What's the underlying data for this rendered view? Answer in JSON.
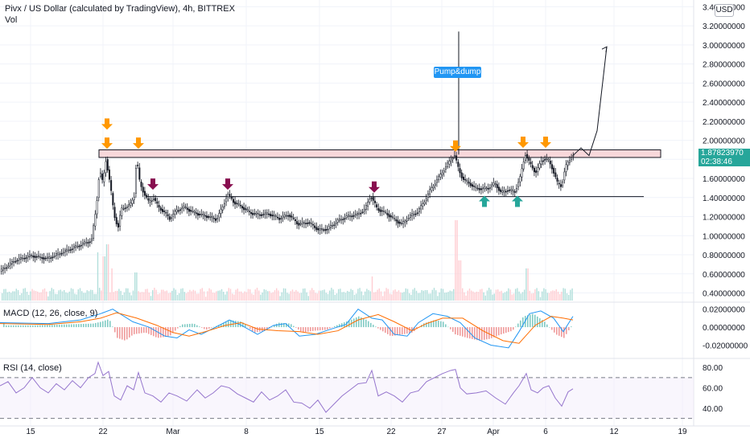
{
  "header": {
    "title": "Pivx / US Dollar (calculated by TradingView), 4h, BITTREX",
    "volume_label": "Vol",
    "currency_badge": "USD"
  },
  "price_tag": {
    "value": "1.87823970",
    "countdown": "02:38:46",
    "color": "#26a69a"
  },
  "annotation": {
    "pump_label": "Pump&dump"
  },
  "indicators": {
    "macd_label": "MACD (12, 26, close, 9)",
    "rsi_label": "RSI (14, close)"
  },
  "colors": {
    "up": "#26a69a",
    "down": "#ef5350",
    "candle": "#131722",
    "resistance_zone": "#f8d7da",
    "arrow_orange": "#ff9800",
    "arrow_maroon": "#880e4f",
    "arrow_teal": "#26a69a",
    "macd_line": "#2196f3",
    "signal_line": "#ff6d00",
    "rsi_line": "#9575cd"
  },
  "chart_data": {
    "type": "candlestick",
    "price_axis": {
      "ticks": [
        "3.40000000",
        "3.20000000",
        "3.00000000",
        "2.80000000",
        "2.60000000",
        "2.40000000",
        "2.20000000",
        "2.00000000",
        "1.80000000",
        "1.60000000",
        "1.40000000",
        "1.20000000",
        "1.00000000",
        "0.80000000",
        "0.60000000",
        "0.40000000"
      ],
      "ylim": [
        0.32,
        3.42
      ]
    },
    "macd_axis": {
      "ticks": [
        "0.02000000",
        "0.00000000",
        "-0.02000000"
      ],
      "ylim": [
        -0.033,
        0.026
      ]
    },
    "rsi_axis": {
      "ticks": [
        "80.00",
        "60.00",
        "40.00"
      ],
      "ylim": [
        25,
        88
      ],
      "bands": [
        70,
        30
      ]
    },
    "x_axis": {
      "ticks": [
        "15",
        "22",
        "Mar",
        "8",
        "15",
        "22",
        "27",
        "Apr",
        "6",
        "12",
        "19"
      ]
    },
    "price_path": [
      [
        0,
        0.62
      ],
      [
        20,
        0.74
      ],
      [
        40,
        0.79
      ],
      [
        60,
        0.76
      ],
      [
        80,
        0.83
      ],
      [
        100,
        0.9
      ],
      [
        115,
        0.95
      ],
      [
        121,
        1.3
      ],
      [
        125,
        1.7
      ],
      [
        129,
        1.55
      ],
      [
        133,
        1.8
      ],
      [
        138,
        1.55
      ],
      [
        143,
        1.22
      ],
      [
        148,
        1.08
      ],
      [
        152,
        1.28
      ],
      [
        157,
        1.3
      ],
      [
        163,
        1.32
      ],
      [
        168,
        1.42
      ],
      [
        171,
        1.82
      ],
      [
        175,
        1.55
      ],
      [
        180,
        1.45
      ],
      [
        186,
        1.35
      ],
      [
        192,
        1.4
      ],
      [
        198,
        1.3
      ],
      [
        205,
        1.25
      ],
      [
        212,
        1.18
      ],
      [
        220,
        1.26
      ],
      [
        230,
        1.3
      ],
      [
        240,
        1.25
      ],
      [
        250,
        1.22
      ],
      [
        260,
        1.2
      ],
      [
        270,
        1.17
      ],
      [
        278,
        1.3
      ],
      [
        284,
        1.44
      ],
      [
        292,
        1.35
      ],
      [
        302,
        1.3
      ],
      [
        312,
        1.24
      ],
      [
        322,
        1.22
      ],
      [
        335,
        1.23
      ],
      [
        348,
        1.18
      ],
      [
        360,
        1.22
      ],
      [
        372,
        1.12
      ],
      [
        385,
        1.14
      ],
      [
        397,
        1.06
      ],
      [
        408,
        1.07
      ],
      [
        420,
        1.15
      ],
      [
        432,
        1.2
      ],
      [
        445,
        1.22
      ],
      [
        455,
        1.28
      ],
      [
        462,
        1.42
      ],
      [
        470,
        1.28
      ],
      [
        480,
        1.24
      ],
      [
        490,
        1.18
      ],
      [
        500,
        1.12
      ],
      [
        510,
        1.2
      ],
      [
        520,
        1.25
      ],
      [
        528,
        1.35
      ],
      [
        536,
        1.48
      ],
      [
        544,
        1.58
      ],
      [
        552,
        1.68
      ],
      [
        560,
        1.78
      ],
      [
        566,
        1.85
      ],
      [
        571,
        1.7
      ],
      [
        576,
        1.6
      ],
      [
        584,
        1.55
      ],
      [
        592,
        1.5
      ],
      [
        600,
        1.49
      ],
      [
        608,
        1.5
      ],
      [
        616,
        1.55
      ],
      [
        624,
        1.45
      ],
      [
        632,
        1.48
      ],
      [
        641,
        1.46
      ],
      [
        648,
        1.62
      ],
      [
        654,
        1.86
      ],
      [
        660,
        1.75
      ],
      [
        667,
        1.66
      ],
      [
        675,
        1.8
      ],
      [
        682,
        1.8
      ],
      [
        688,
        1.7
      ],
      [
        694,
        1.55
      ],
      [
        699,
        1.52
      ],
      [
        704,
        1.72
      ],
      [
        712,
        1.84
      ]
    ],
    "projection_path": [
      [
        712,
        1.84
      ],
      [
        722,
        1.92
      ],
      [
        732,
        1.84
      ],
      [
        742,
        2.1
      ],
      [
        754,
        2.98
      ]
    ],
    "resistance_zone": [
      1.82,
      1.9
    ],
    "support_line": 1.41,
    "pump_wick_high": 3.14,
    "volume_spikes": [
      [
        121,
        60
      ],
      [
        129,
        55
      ],
      [
        133,
        70
      ],
      [
        138,
        40
      ],
      [
        168,
        35
      ],
      [
        462,
        30
      ],
      [
        566,
        100
      ],
      [
        571,
        50
      ],
      [
        654,
        40
      ]
    ],
    "arrows": {
      "orange_down": [
        [
          133,
          2.17
        ],
        [
          133,
          1.97
        ],
        [
          172,
          1.97
        ],
        [
          566,
          1.94
        ],
        [
          650,
          1.98
        ],
        [
          678,
          1.98
        ]
      ],
      "maroon_down": [
        [
          190,
          1.54
        ],
        [
          283,
          1.54
        ],
        [
          465,
          1.51
        ]
      ],
      "teal_up": [
        [
          602,
          1.36
        ],
        [
          643,
          1.36
        ]
      ]
    },
    "macd": {
      "line": [
        [
          0,
          0.005
        ],
        [
          60,
          0.004
        ],
        [
          100,
          0.008
        ],
        [
          125,
          0.015
        ],
        [
          140,
          0.02
        ],
        [
          165,
          0.006
        ],
        [
          185,
          0.0
        ],
        [
          205,
          -0.01
        ],
        [
          220,
          -0.012
        ],
        [
          235,
          -0.003
        ],
        [
          250,
          -0.008
        ],
        [
          268,
          0.0
        ],
        [
          285,
          0.008
        ],
        [
          300,
          0.002
        ],
        [
          320,
          -0.008
        ],
        [
          340,
          0.002
        ],
        [
          355,
          0.004
        ],
        [
          372,
          -0.01
        ],
        [
          392,
          -0.008
        ],
        [
          412,
          -0.002
        ],
        [
          430,
          0.003
        ],
        [
          445,
          0.02
        ],
        [
          462,
          0.01
        ],
        [
          475,
          0.008
        ],
        [
          490,
          -0.008
        ],
        [
          506,
          -0.01
        ],
        [
          520,
          0.005
        ],
        [
          538,
          0.015
        ],
        [
          556,
          0.012
        ],
        [
          572,
          0.005
        ],
        [
          590,
          -0.012
        ],
        [
          610,
          -0.02
        ],
        [
          632,
          -0.023
        ],
        [
          645,
          -0.005
        ],
        [
          658,
          0.015
        ],
        [
          672,
          0.018
        ],
        [
          688,
          0.01
        ],
        [
          700,
          -0.005
        ],
        [
          712,
          0.012
        ]
      ],
      "signal": [
        [
          0,
          0.004
        ],
        [
          60,
          0.003
        ],
        [
          100,
          0.006
        ],
        [
          125,
          0.01
        ],
        [
          145,
          0.016
        ],
        [
          170,
          0.01
        ],
        [
          195,
          0.002
        ],
        [
          215,
          -0.006
        ],
        [
          235,
          -0.01
        ],
        [
          255,
          -0.005
        ],
        [
          280,
          0.002
        ],
        [
          300,
          0.005
        ],
        [
          320,
          -0.002
        ],
        [
          345,
          -0.004
        ],
        [
          372,
          -0.005
        ],
        [
          395,
          -0.008
        ],
        [
          420,
          -0.004
        ],
        [
          445,
          0.008
        ],
        [
          470,
          0.014
        ],
        [
          490,
          0.006
        ],
        [
          512,
          -0.004
        ],
        [
          530,
          0.004
        ],
        [
          550,
          0.01
        ],
        [
          575,
          0.01
        ],
        [
          600,
          -0.004
        ],
        [
          625,
          -0.015
        ],
        [
          645,
          -0.018
        ],
        [
          665,
          0.002
        ],
        [
          685,
          0.012
        ],
        [
          700,
          0.01
        ],
        [
          712,
          0.008
        ]
      ],
      "hist": [
        [
          5,
          0.002
        ],
        [
          40,
          0.002
        ],
        [
          80,
          0.003
        ],
        [
          115,
          0.004
        ],
        [
          125,
          0.006
        ],
        [
          135,
          0.009
        ],
        [
          145,
          -0.012
        ],
        [
          155,
          -0.015
        ],
        [
          165,
          -0.008
        ],
        [
          180,
          -0.006
        ],
        [
          195,
          -0.012
        ],
        [
          210,
          -0.01
        ],
        [
          225,
          0.003
        ],
        [
          240,
          0.004
        ],
        [
          255,
          -0.003
        ],
        [
          270,
          0.002
        ],
        [
          285,
          0.008
        ],
        [
          300,
          0.006
        ],
        [
          315,
          -0.006
        ],
        [
          330,
          -0.004
        ],
        [
          345,
          0.005
        ],
        [
          360,
          0.004
        ],
        [
          375,
          -0.006
        ],
        [
          390,
          -0.004
        ],
        [
          405,
          -0.003
        ],
        [
          420,
          0.003
        ],
        [
          435,
          0.008
        ],
        [
          445,
          0.012
        ],
        [
          455,
          0.008
        ],
        [
          470,
          -0.002
        ],
        [
          485,
          -0.01
        ],
        [
          500,
          -0.008
        ],
        [
          512,
          -0.006
        ],
        [
          525,
          0.004
        ],
        [
          540,
          0.008
        ],
        [
          550,
          0.006
        ],
        [
          565,
          -0.008
        ],
        [
          580,
          -0.012
        ],
        [
          595,
          -0.015
        ],
        [
          608,
          -0.013
        ],
        [
          622,
          -0.008
        ],
        [
          636,
          -0.004
        ],
        [
          650,
          0.012
        ],
        [
          662,
          0.015
        ],
        [
          676,
          0.006
        ],
        [
          690,
          -0.008
        ],
        [
          700,
          -0.012
        ],
        [
          712,
          0.005
        ]
      ]
    },
    "rsi": [
      [
        0,
        62
      ],
      [
        10,
        66
      ],
      [
        20,
        55
      ],
      [
        30,
        60
      ],
      [
        40,
        70
      ],
      [
        50,
        60
      ],
      [
        60,
        55
      ],
      [
        70,
        64
      ],
      [
        80,
        58
      ],
      [
        90,
        67
      ],
      [
        100,
        60
      ],
      [
        110,
        70
      ],
      [
        118,
        74
      ],
      [
        122,
        85
      ],
      [
        128,
        72
      ],
      [
        135,
        76
      ],
      [
        142,
        52
      ],
      [
        150,
        48
      ],
      [
        158,
        62
      ],
      [
        166,
        58
      ],
      [
        172,
        75
      ],
      [
        180,
        55
      ],
      [
        190,
        52
      ],
      [
        200,
        46
      ],
      [
        210,
        55
      ],
      [
        220,
        52
      ],
      [
        232,
        47
      ],
      [
        245,
        58
      ],
      [
        255,
        50
      ],
      [
        265,
        55
      ],
      [
        275,
        62
      ],
      [
        285,
        60
      ],
      [
        295,
        54
      ],
      [
        305,
        50
      ],
      [
        315,
        46
      ],
      [
        325,
        56
      ],
      [
        335,
        48
      ],
      [
        345,
        52
      ],
      [
        355,
        58
      ],
      [
        365,
        46
      ],
      [
        375,
        45
      ],
      [
        385,
        40
      ],
      [
        395,
        48
      ],
      [
        405,
        36
      ],
      [
        415,
        44
      ],
      [
        425,
        52
      ],
      [
        435,
        58
      ],
      [
        445,
        64
      ],
      [
        455,
        65
      ],
      [
        462,
        77
      ],
      [
        470,
        52
      ],
      [
        480,
        56
      ],
      [
        490,
        52
      ],
      [
        500,
        46
      ],
      [
        510,
        55
      ],
      [
        520,
        57
      ],
      [
        530,
        66
      ],
      [
        540,
        70
      ],
      [
        550,
        74
      ],
      [
        560,
        77
      ],
      [
        566,
        78
      ],
      [
        572,
        60
      ],
      [
        580,
        54
      ],
      [
        592,
        55
      ],
      [
        604,
        57
      ],
      [
        616,
        50
      ],
      [
        628,
        44
      ],
      [
        638,
        55
      ],
      [
        645,
        62
      ],
      [
        654,
        74
      ],
      [
        660,
        58
      ],
      [
        668,
        55
      ],
      [
        675,
        60
      ],
      [
        682,
        62
      ],
      [
        690,
        50
      ],
      [
        698,
        42
      ],
      [
        706,
        56
      ],
      [
        712,
        59
      ]
    ]
  }
}
